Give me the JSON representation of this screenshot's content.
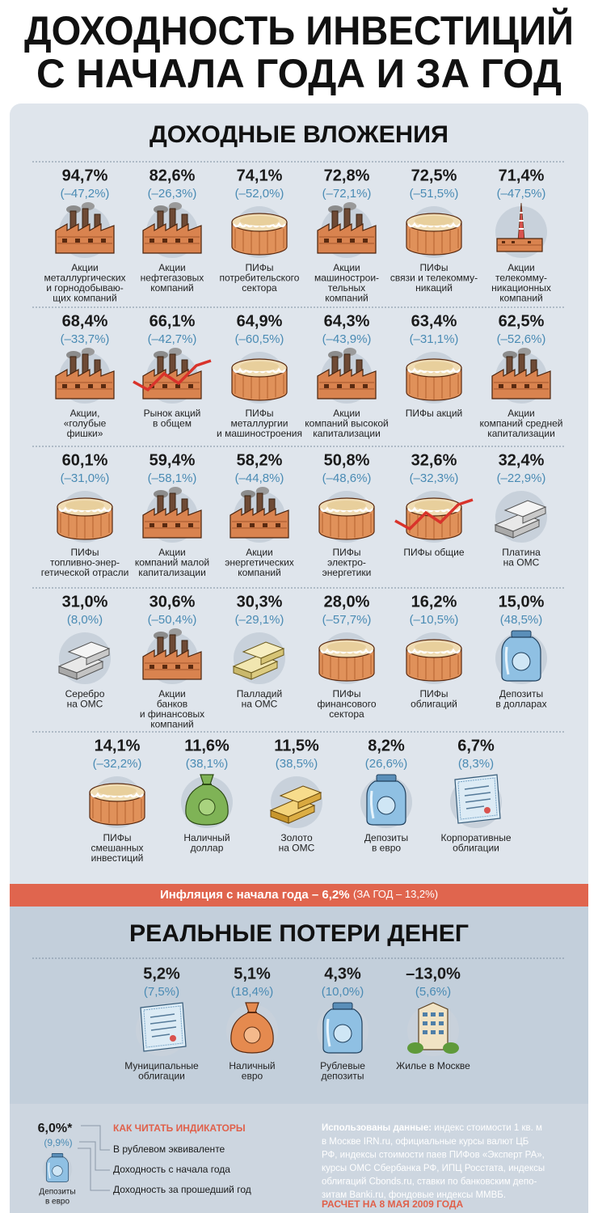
{
  "title": [
    "ДОХОДНОСТЬ ИНВЕСТИЦИЙ",
    "С НАЧАЛА ГОДА И ЗА ГОД"
  ],
  "income": {
    "heading": "ДОХОДНЫЕ ВЛОЖЕНИЯ",
    "rows": [
      [
        {
          "ytd": "94,7%",
          "year": "(–47,2%)",
          "label": [
            "Акции",
            "металлургических",
            "и горнодобываю-",
            "щих компаний"
          ]
        },
        {
          "ytd": "82,6%",
          "year": "(–26,3%)",
          "label": [
            "Акции",
            "нефтегазовых",
            "компаний"
          ]
        },
        {
          "ytd": "74,1%",
          "year": "(–52,0%)",
          "label": [
            "ПИФы",
            "потребительского",
            "сектора"
          ]
        },
        {
          "ytd": "72,8%",
          "year": "(–72,1%)",
          "label": [
            "Акции",
            "машинострои-",
            "тельных",
            "компаний"
          ]
        },
        {
          "ytd": "72,5%",
          "year": "(–51,5%)",
          "label": [
            "ПИФы",
            "связи и телекомму-",
            "никаций"
          ]
        },
        {
          "ytd": "71,4%",
          "year": "(–47,5%)",
          "label": [
            "Акции",
            "телекомму-",
            "никационных",
            "компаний"
          ]
        }
      ],
      [
        {
          "ytd": "68,4%",
          "year": "(–33,7%)",
          "label": [
            "Акции,",
            "«голубые",
            "фишки»"
          ]
        },
        {
          "ytd": "66,1%",
          "year": "(–42,7%)",
          "label": [
            "Рынок акций",
            "в общем"
          ]
        },
        {
          "ytd": "64,9%",
          "year": "(–60,5%)",
          "label": [
            "ПИФы",
            "металлургии",
            "и машиностроения"
          ]
        },
        {
          "ytd": "64,3%",
          "year": "(–43,9%)",
          "label": [
            "Акции",
            "компаний высокой",
            "капитализации"
          ]
        },
        {
          "ytd": "63,4%",
          "year": "(–31,1%)",
          "label": [
            "ПИФы акций"
          ]
        },
        {
          "ytd": "62,5%",
          "year": "(–52,6%)",
          "label": [
            "Акции",
            "компаний средней",
            "капитализации"
          ]
        }
      ],
      [
        {
          "ytd": "60,1%",
          "year": "(–31,0%)",
          "label": [
            "ПИФы",
            "топливно-энер-",
            "гетической отрасли"
          ]
        },
        {
          "ytd": "59,4%",
          "year": "(–58,1%)",
          "label": [
            "Акции",
            "компаний малой",
            "капитализации"
          ]
        },
        {
          "ytd": "58,2%",
          "year": "(–44,8%)",
          "label": [
            "Акции",
            "энергетических",
            "компаний"
          ]
        },
        {
          "ytd": "50,8%",
          "year": "(–48,6%)",
          "label": [
            "ПИФы",
            "электро-",
            "энергетики"
          ]
        },
        {
          "ytd": "32,6%",
          "year": "(–32,3%)",
          "label": [
            "ПИФы общие"
          ]
        },
        {
          "ytd": "32,4%",
          "year": "(–22,9%)",
          "label": [
            "Платина",
            "на ОМС"
          ]
        }
      ],
      [
        {
          "ytd": "31,0%",
          "year": "(8,0%)",
          "label": [
            "Серебро",
            "на ОМС"
          ]
        },
        {
          "ytd": "30,6%",
          "year": "(–50,4%)",
          "label": [
            "Акции",
            "банков",
            "и финансовых",
            "компаний"
          ]
        },
        {
          "ytd": "30,3%",
          "year": "(–29,1%)",
          "label": [
            "Палладий",
            "на ОМС"
          ]
        },
        {
          "ytd": "28,0%",
          "year": "(–57,7%)",
          "label": [
            "ПИФы",
            "финансового",
            "сектора"
          ]
        },
        {
          "ytd": "16,2%",
          "year": "(–10,5%)",
          "label": [
            "ПИФы",
            "облигаций"
          ]
        },
        {
          "ytd": "15,0%",
          "year": "(48,5%)",
          "label": [
            "Депозиты",
            "в долларах"
          ]
        }
      ],
      [
        {
          "ytd": "14,1%",
          "year": "(–32,2%)",
          "label": [
            "ПИФы",
            "смешанных",
            "инвестиций"
          ]
        },
        {
          "ytd": "11,6%",
          "year": "(38,1%)",
          "label": [
            "Наличный",
            "доллар"
          ]
        },
        {
          "ytd": "11,5%",
          "year": "(38,5%)",
          "label": [
            "Золото",
            "на ОМС"
          ]
        },
        {
          "ytd": "8,2%",
          "year": "(26,6%)",
          "label": [
            "Депозиты",
            "в евро"
          ]
        },
        {
          "ytd": "6,7%",
          "year": "(8,3%)",
          "label": [
            "Корпоративные",
            "облигации"
          ]
        }
      ]
    ]
  },
  "inflation": {
    "main": "Инфляция с начала года – 6,2%",
    "year": "(ЗА ГОД – 13,2%)"
  },
  "losses": {
    "heading": "РЕАЛЬНЫЕ ПОТЕРИ ДЕНЕГ",
    "items": [
      {
        "ytd": "5,2%",
        "year": "(7,5%)",
        "label": [
          "Муниципальные",
          "облигации"
        ]
      },
      {
        "ytd": "5,1%",
        "year": "(18,4%)",
        "label": [
          "Наличный",
          "евро"
        ]
      },
      {
        "ytd": "4,3%",
        "year": "(10,0%)",
        "label": [
          "Рублевые",
          "депозиты"
        ]
      },
      {
        "ytd": "–13,0%",
        "year": "(5,6%)",
        "label": [
          "Жилье в Москве"
        ]
      }
    ]
  },
  "legend": {
    "heading": "КАК ЧИТАТЬ ИНДИКАТОРЫ",
    "example": {
      "ytd": "6,0%*",
      "year": "(9,9%)",
      "label": [
        "Депозиты",
        "в евро"
      ]
    },
    "lines": [
      "В рублевом эквиваленте",
      "Доходность с начала года",
      "Доходность за прошедший год"
    ]
  },
  "sources": {
    "lead": "Использованы данные:",
    "first": "индекс стоимости 1 кв. м",
    "lines": [
      "в Москве IRN.ru, официальные курсы валют ЦБ",
      "РФ, индексы стоимости паев ПИФов «Эксперт РА»,",
      "курсы ОМС Сбербанка РФ, ИПЦ Росстата, индексы",
      "облигаций Cbonds.ru, ставки по банковским депо-",
      "зитам Banki.ru, фондовые индексы ММВБ."
    ],
    "date": "РАСЧЕТ НА 8 МАЯ 2009 ГОДА"
  }
}
